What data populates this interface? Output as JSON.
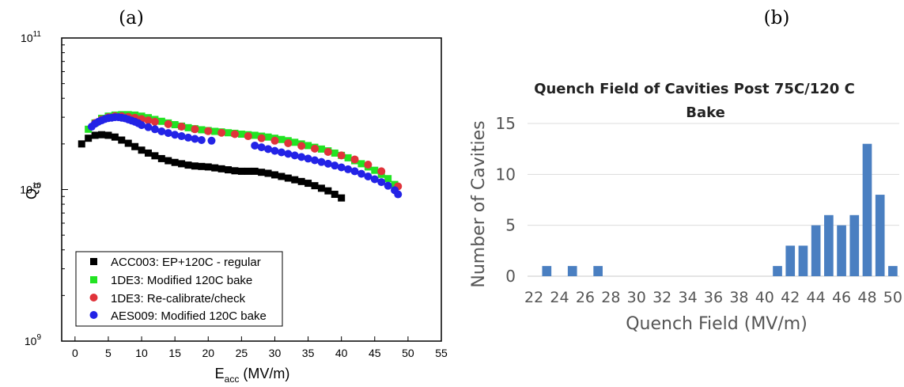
{
  "panel_labels": {
    "a": "(a)",
    "b": "(b)"
  },
  "chart_data": [
    {
      "type": "scatter",
      "title": "",
      "xlabel": "E",
      "xlabel_sub": "acc",
      "xlabel_unit": " (MV/m)",
      "ylabel": "Q",
      "ylabel_sub": "0",
      "xlim": [
        -2,
        55
      ],
      "ylim": [
        1000000000,
        100000000000
      ],
      "yscale": "log",
      "xticks": [
        0,
        5,
        10,
        15,
        20,
        25,
        30,
        35,
        40,
        45,
        50,
        55
      ],
      "yticks": [
        {
          "value": 1000000000,
          "base": "10",
          "exp": "9"
        },
        {
          "value": 10000000000,
          "base": "10",
          "exp": "10"
        },
        {
          "value": 100000000000,
          "base": "10",
          "exp": "11"
        }
      ],
      "legend_position": "bottom-left",
      "series": [
        {
          "name": "ACC003: EP+120C - regular",
          "marker": "square",
          "color": "#000000",
          "x": [
            1,
            2,
            3,
            4,
            5,
            6,
            7,
            8,
            9,
            10,
            11,
            12,
            13,
            14,
            15,
            16,
            17,
            18,
            19,
            20,
            21,
            22,
            23,
            24,
            25,
            26,
            27,
            28,
            29,
            30,
            31,
            32,
            33,
            34,
            35,
            36,
            37,
            38,
            39,
            40
          ],
          "y": [
            20000000000.0,
            21800000000.0,
            22800000000.0,
            23000000000.0,
            22800000000.0,
            22200000000.0,
            21200000000.0,
            20200000000.0,
            19200000000.0,
            18200000000.0,
            17400000000.0,
            16700000000.0,
            16000000000.0,
            15500000000.0,
            15100000000.0,
            14800000000.0,
            14500000000.0,
            14300000000.0,
            14200000000.0,
            14100000000.0,
            13900000000.0,
            13700000000.0,
            13500000000.0,
            13300000000.0,
            13200000000.0,
            13200000000.0,
            13200000000.0,
            13000000000.0,
            12800000000.0,
            12500000000.0,
            12200000000.0,
            11900000000.0,
            11600000000.0,
            11300000000.0,
            11000000000.0,
            10600000000.0,
            10200000000.0,
            9800000000.0,
            9300000000.0,
            8800000000.0
          ]
        },
        {
          "name": "1DE3: Modified 120C bake",
          "marker": "square",
          "color": "#22e322",
          "x": [
            2,
            3,
            4,
            5,
            6,
            7,
            8,
            9,
            10,
            11,
            12,
            13,
            14,
            15,
            16,
            17,
            18,
            19,
            20,
            21,
            22,
            23,
            24,
            25,
            26,
            27,
            28,
            29,
            30,
            31,
            32,
            33,
            34,
            35,
            36,
            37,
            38,
            39,
            40,
            41,
            42,
            43,
            44,
            45,
            46,
            47,
            48
          ],
          "y": [
            25000000000.0,
            27500000000.0,
            29500000000.0,
            30500000000.0,
            31000000000.0,
            31200000000.0,
            31200000000.0,
            31000000000.0,
            30500000000.0,
            29800000000.0,
            29000000000.0,
            28200000000.0,
            27500000000.0,
            26800000000.0,
            26200000000.0,
            25600000000.0,
            25200000000.0,
            24800000000.0,
            24500000000.0,
            24200000000.0,
            24000000000.0,
            23700000000.0,
            23500000000.0,
            23200000000.0,
            23000000000.0,
            22800000000.0,
            22500000000.0,
            22200000000.0,
            21800000000.0,
            21400000000.0,
            21000000000.0,
            20500000000.0,
            20000000000.0,
            19500000000.0,
            19000000000.0,
            18500000000.0,
            18000000000.0,
            17400000000.0,
            16800000000.0,
            16200000000.0,
            15500000000.0,
            14800000000.0,
            14100000000.0,
            13400000000.0,
            12600000000.0,
            11800000000.0,
            10800000000.0
          ]
        },
        {
          "name": "1DE3: Re-calibrate/check",
          "marker": "circle",
          "color": "#e0333a",
          "x": [
            3,
            4,
            5,
            6,
            7,
            8,
            9,
            10,
            11,
            12,
            14,
            16,
            18,
            20,
            22,
            24,
            26,
            28,
            30,
            32,
            34,
            36,
            38,
            40,
            42,
            44,
            46,
            48.5
          ],
          "y": [
            27500000000.0,
            29000000000.0,
            30000000000.0,
            30500000000.0,
            30500000000.0,
            30200000000.0,
            29800000000.0,
            29200000000.0,
            28600000000.0,
            28000000000.0,
            27000000000.0,
            26000000000.0,
            25000000000.0,
            24300000000.0,
            23700000000.0,
            23200000000.0,
            22500000000.0,
            21800000000.0,
            21000000000.0,
            20200000000.0,
            19400000000.0,
            18600000000.0,
            17700000000.0,
            16800000000.0,
            15800000000.0,
            14600000000.0,
            13200000000.0,
            10500000000.0
          ]
        },
        {
          "name": "AES009: Modified 120C bake",
          "marker": "circle",
          "color": "#2323e6",
          "x": [
            2.5,
            3,
            3.5,
            4,
            4.5,
            5,
            5.5,
            6,
            6.5,
            7,
            7.5,
            8,
            8.5,
            9,
            9.5,
            10,
            11,
            12,
            13,
            14,
            15,
            16,
            17,
            18,
            19,
            20.5,
            27,
            28,
            29,
            30,
            31,
            32,
            33,
            34,
            35,
            36,
            37,
            38,
            39,
            40,
            41,
            42,
            43,
            44,
            45,
            46,
            47,
            48,
            48.5
          ],
          "y": [
            26000000000.0,
            27200000000.0,
            28000000000.0,
            28600000000.0,
            29200000000.0,
            29600000000.0,
            29800000000.0,
            30000000000.0,
            30000000000.0,
            29800000000.0,
            29500000000.0,
            29000000000.0,
            28500000000.0,
            28000000000.0,
            27400000000.0,
            26600000000.0,
            25800000000.0,
            25000000000.0,
            24200000000.0,
            23600000000.0,
            23000000000.0,
            22500000000.0,
            22000000000.0,
            21600000000.0,
            21200000000.0,
            21000000000.0,
            19500000000.0,
            19000000000.0,
            18500000000.0,
            18000000000.0,
            17600000000.0,
            17200000000.0,
            16800000000.0,
            16400000000.0,
            16000000000.0,
            15600000000.0,
            15200000000.0,
            14800000000.0,
            14400000000.0,
            14000000000.0,
            13600000000.0,
            13200000000.0,
            12700000000.0,
            12200000000.0,
            11700000000.0,
            11200000000.0,
            10600000000.0,
            9900000000.0,
            9300000000.0
          ]
        }
      ]
    },
    {
      "type": "bar",
      "title_lines": [
        "Quench Field of Cavities Post 75C/120 C",
        "Bake"
      ],
      "xlabel": "Quench Field (MV/m)",
      "ylabel": "Number of Cavities",
      "ylim": [
        0,
        15
      ],
      "yticks": [
        0,
        5,
        10,
        15
      ],
      "grid": "horizontal",
      "color": "#4a7fc1",
      "xtick_labels": [
        "22",
        "24",
        "26",
        "28",
        "30",
        "32",
        "34",
        "36",
        "38",
        "40",
        "42",
        "44",
        "46",
        "48",
        "50"
      ],
      "categories": [
        22,
        23,
        24,
        25,
        26,
        27,
        28,
        29,
        30,
        31,
        32,
        33,
        34,
        35,
        36,
        37,
        38,
        39,
        40,
        41,
        42,
        43,
        44,
        45,
        46,
        47,
        48,
        49,
        50
      ],
      "values": [
        0,
        1,
        0,
        1,
        0,
        1,
        0,
        0,
        0,
        0,
        0,
        0,
        0,
        0,
        0,
        0,
        0,
        0,
        0,
        1,
        3,
        3,
        5,
        6,
        5,
        6,
        13,
        8,
        1
      ]
    }
  ]
}
